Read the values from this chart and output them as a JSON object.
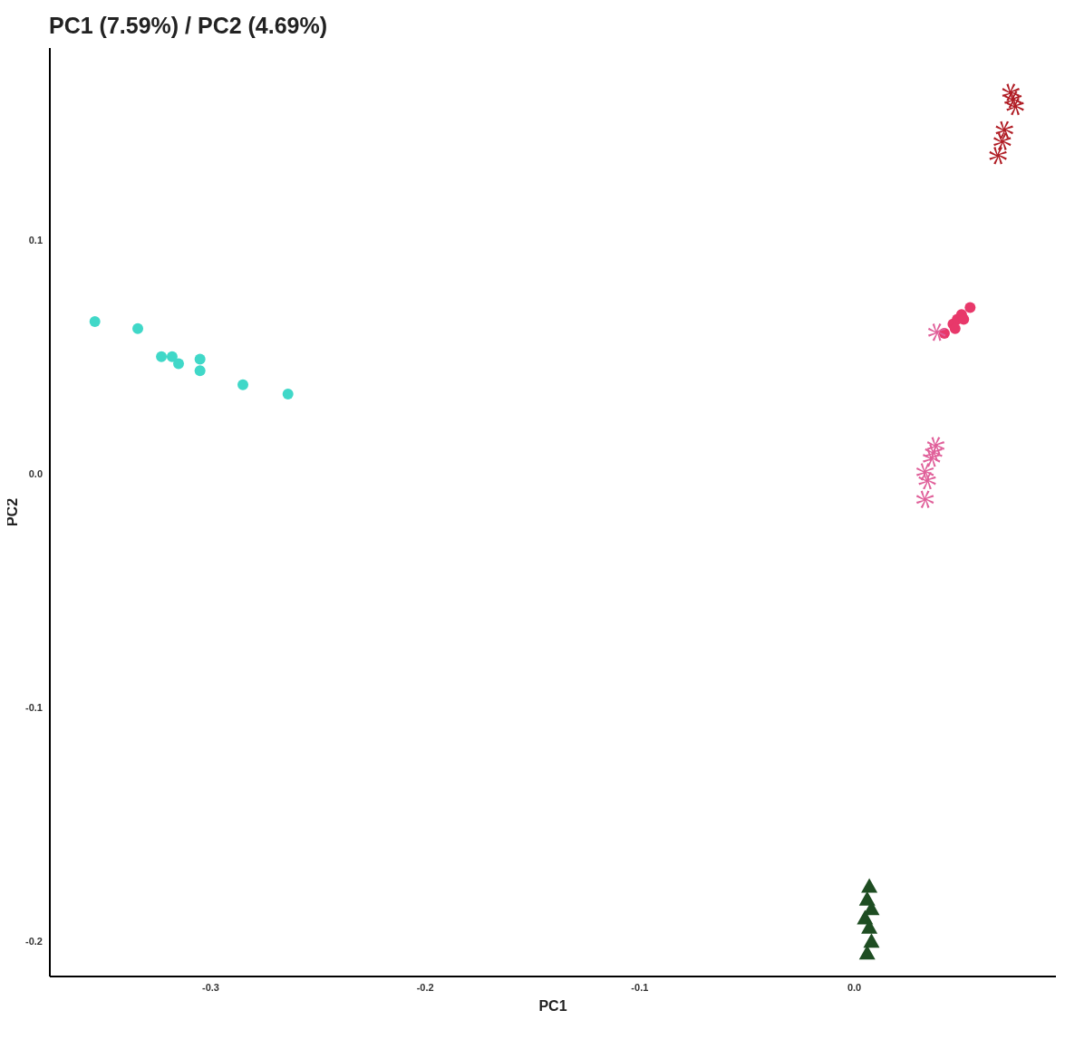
{
  "chart_data": {
    "type": "scatter",
    "title": "PC1 (7.59%) / PC2 (4.69%)",
    "xlabel": "PC1",
    "ylabel": "PC2",
    "xlim": [
      -0.375,
      0.094
    ],
    "ylim": [
      -0.215,
      0.182
    ],
    "xticks": [
      -0.3,
      -0.2,
      -0.1,
      {
        "value": 0,
        "label": "0.0"
      }
    ],
    "yticks": [
      {
        "value": 0.1,
        "label": "0.1"
      },
      {
        "value": 0,
        "label": "0.0"
      },
      -0.1,
      -0.2
    ],
    "grid": false,
    "series": [
      {
        "color": "#40d8c8",
        "marker": "circle",
        "x": [
          -0.354,
          -0.334,
          -0.323,
          -0.318,
          -0.315,
          -0.305,
          -0.305,
          -0.285,
          -0.264
        ],
        "values": [
          0.065,
          0.062,
          0.05,
          0.05,
          0.047,
          0.049,
          0.044,
          0.038,
          0.034
        ]
      },
      {
        "color": "#b01c24",
        "marker": "cross",
        "x": [
          0.073,
          0.075,
          0.07,
          0.069,
          0.067,
          0.074
        ],
        "values": [
          0.163,
          0.157,
          0.147,
          0.142,
          0.136,
          0.16
        ]
      },
      {
        "color": "#e8386a",
        "marker": "circle",
        "x": [
          0.042,
          0.046,
          0.048,
          0.05,
          0.054,
          0.047,
          0.051
        ],
        "values": [
          0.06,
          0.064,
          0.066,
          0.068,
          0.071,
          0.062,
          0.066
        ]
      },
      {
        "color": "#e0609a",
        "marker": "cross",
        "x": [
          0.0385,
          0.038,
          0.036,
          0.033,
          0.034,
          0.033,
          0.037
        ],
        "values": [
          0.0605,
          0.012,
          0.0066,
          0.0008,
          -0.003,
          -0.011,
          0.009
        ]
      },
      {
        "color": "#1e4d22",
        "marker": "triangle",
        "x": [
          0.007,
          0.006,
          0.008,
          0.005,
          0.007,
          0.008,
          0.006
        ],
        "values": [
          -0.1765,
          -0.182,
          -0.186,
          -0.19,
          -0.194,
          -0.2,
          -0.205
        ]
      }
    ]
  }
}
